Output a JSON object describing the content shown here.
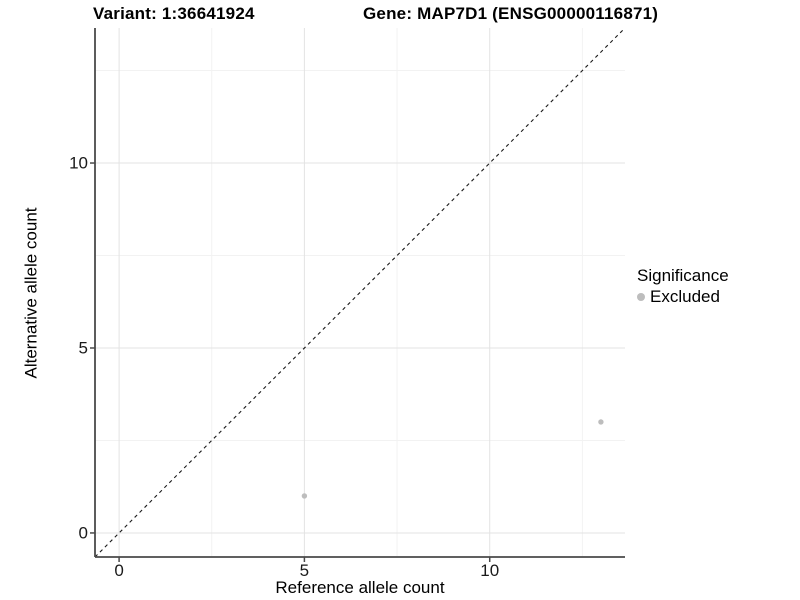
{
  "header": {
    "variant_title": "Variant: 1:36641924",
    "gene_title": "Gene: MAP7D1 (ENSG00000116871)"
  },
  "legend": {
    "title": "Significance",
    "items": [
      {
        "label": "Excluded",
        "color": "#bdbdbd"
      }
    ]
  },
  "chart_data": {
    "type": "scatter",
    "title": "Variant: 1:36641924 | Gene: MAP7D1 (ENSG00000116871)",
    "xlabel": "Reference allele count",
    "ylabel": "Alternative allele count",
    "xlim": [
      -0.65,
      13.65
    ],
    "ylim": [
      -0.65,
      13.65
    ],
    "x_ticks": [
      0,
      5,
      10
    ],
    "y_ticks": [
      0,
      5,
      10
    ],
    "x_minor_ticks": [
      2.5,
      7.5,
      12.5
    ],
    "y_minor_ticks": [
      2.5,
      7.5,
      12.5
    ],
    "grid": "major and minor gridlines on white background",
    "legend_position": "right-middle",
    "series": [
      {
        "name": "Excluded",
        "color": "#bdbdbd",
        "points": [
          [
            5,
            1
          ],
          [
            13,
            3
          ]
        ]
      }
    ],
    "reference_line": {
      "type": "identity y=x",
      "style": "dashed",
      "color": "#1a1a1a"
    }
  },
  "colors": {
    "background": "#ffffff",
    "grid_major": "#e3e3e3",
    "grid_minor": "#f2f2f2",
    "axis": "#4a4a4a",
    "point": "#bdbdbd",
    "dashed_line": "#1a1a1a",
    "text": "#000000"
  }
}
